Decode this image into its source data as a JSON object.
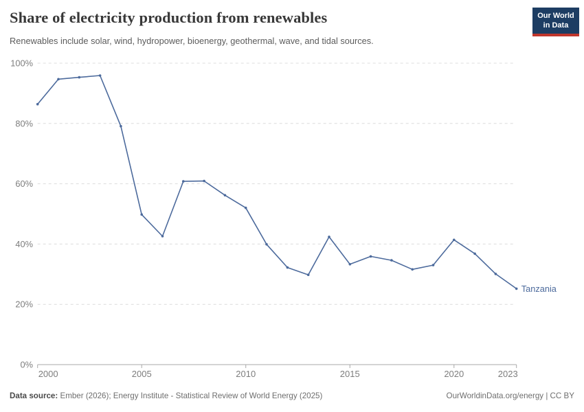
{
  "header": {
    "title": "Share of electricity production from renewables",
    "subtitle": "Renewables include solar, wind, hydropower, bioenergy, geothermal, wave, and tidal sources.",
    "logo": {
      "line1": "Our World",
      "line2": "in Data"
    }
  },
  "footer": {
    "datasource_label": "Data source:",
    "datasource_text": " Ember (2026); Energy Institute - Statistical Review of World Energy (2025)",
    "right_credit": "OurWorldinData.org/energy | CC BY"
  },
  "colors": {
    "line": "#4c6a9c",
    "entity_label": "#4c6a9c",
    "grid": "#dcdcdc",
    "axis": "#a8a8a8",
    "tick_text": "#7d7d7d",
    "logo_bg": "#1d3d63",
    "logo_red": "#c0362c"
  },
  "chart_data": {
    "type": "line",
    "title": "Share of electricity production from renewables",
    "subtitle": "Renewables include solar, wind, hydropower, bioenergy, geothermal, wave, and tidal sources.",
    "xlabel": "",
    "ylabel": "",
    "xlim": [
      2000,
      2023
    ],
    "ylim": [
      0,
      100
    ],
    "x_ticks": [
      2000,
      2005,
      2010,
      2015,
      2020,
      2023
    ],
    "y_ticks": [
      0,
      20,
      40,
      60,
      80,
      100
    ],
    "y_tick_suffix": "%",
    "grid": "horizontal-dashed",
    "legend_position": "inline-end-of-line",
    "x": [
      2000,
      2001,
      2002,
      2003,
      2004,
      2005,
      2006,
      2007,
      2008,
      2009,
      2010,
      2011,
      2012,
      2013,
      2014,
      2015,
      2016,
      2017,
      2018,
      2019,
      2020,
      2021,
      2022,
      2023
    ],
    "series": [
      {
        "name": "Tanzania",
        "color": "#4c6a9c",
        "values": [
          86.4,
          94.7,
          95.3,
          95.9,
          79.1,
          49.8,
          42.6,
          60.8,
          60.9,
          56.2,
          52.0,
          39.9,
          32.2,
          29.8,
          42.4,
          33.3,
          35.9,
          34.6,
          31.6,
          33.0,
          41.4,
          36.8,
          30.1,
          25.2
        ]
      }
    ]
  }
}
